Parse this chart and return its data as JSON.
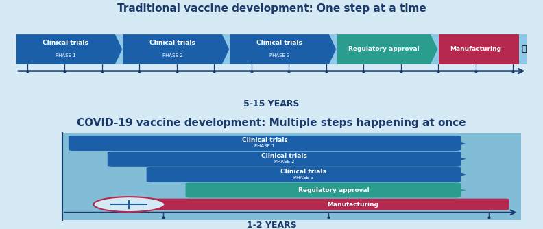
{
  "top_title": "Traditional vaccine development: One step at a time",
  "bottom_title": "COVID-19 vaccine development: Multiple steps happening at once",
  "top_bg": "#d6eaf5",
  "bottom_bg": "#d6eaf5",
  "top_bar_bg": "#8ec8e8",
  "inner_bg": "#82bdd8",
  "arrow_color": "#1a3a6b",
  "trad_years": "5-15 YEARS",
  "covid_years": "1-2 YEARS",
  "trad_segments": [
    {
      "label": "Clinical trials",
      "phase": "PHASE 1",
      "color": "#1a5fa8"
    },
    {
      "label": "Clinical trials",
      "phase": "PHASE 2",
      "color": "#1a5fa8"
    },
    {
      "label": "Clinical trials",
      "phase": "PHASE 3",
      "color": "#1a5fa8"
    },
    {
      "label": "Regulatory approval",
      "phase": "",
      "color": "#2a9d8f"
    },
    {
      "label": "Manufacturing",
      "phase": "",
      "color": "#b5294e"
    }
  ],
  "title_color": "#1a3a6b",
  "white": "#ffffff",
  "year_color": "#1a3a6b"
}
